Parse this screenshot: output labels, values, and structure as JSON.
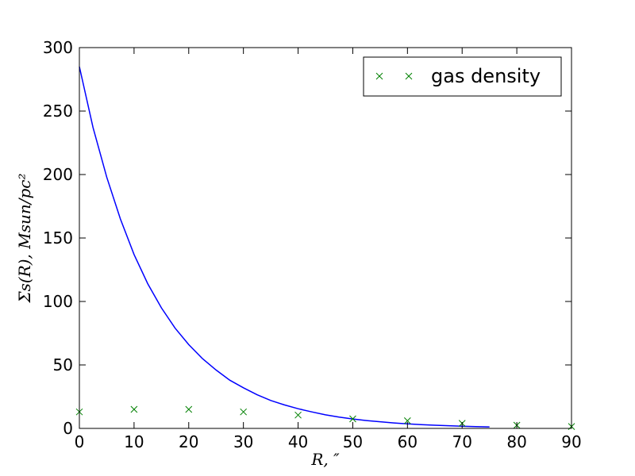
{
  "chart_data": {
    "type": "line",
    "title": "",
    "xlabel": "R, ″",
    "ylabel": "Σs(R), Msun/pc²",
    "xlim": [
      0,
      90
    ],
    "ylim": [
      0,
      300
    ],
    "xticks": [
      0,
      10,
      20,
      30,
      40,
      50,
      60,
      70,
      80,
      90
    ],
    "yticks": [
      0,
      50,
      100,
      150,
      200,
      250,
      300
    ],
    "grid": false,
    "legend_position": "top-right",
    "colors": {
      "line": "#0000ff",
      "markers": "#008000"
    },
    "series": [
      {
        "kind": "line",
        "x": [
          0,
          2.5,
          5,
          7.5,
          10,
          12.5,
          15,
          17.5,
          20,
          22.5,
          25,
          27.5,
          30,
          32.5,
          35,
          37.5,
          40,
          42.5,
          45,
          47.5,
          50,
          52.5,
          55,
          57.5,
          60,
          62.5,
          65,
          67.5,
          70,
          72.5,
          75
        ],
        "y": [
          285,
          237,
          198,
          165,
          137,
          114,
          95,
          79,
          66,
          55,
          46,
          38,
          32,
          26.5,
          22,
          18.5,
          15.5,
          13,
          10.7,
          8.9,
          7.4,
          6.2,
          5.2,
          4.3,
          3.6,
          3.0,
          2.5,
          2.1,
          1.7,
          1.4,
          1.2
        ]
      },
      {
        "kind": "markers",
        "name": "gas density",
        "marker": "x",
        "x": [
          0,
          10,
          20,
          30,
          40,
          50,
          60,
          70,
          80,
          90
        ],
        "y": [
          13,
          15,
          15,
          13,
          10.5,
          7.5,
          6,
          4,
          2.5,
          1.5
        ]
      }
    ]
  }
}
